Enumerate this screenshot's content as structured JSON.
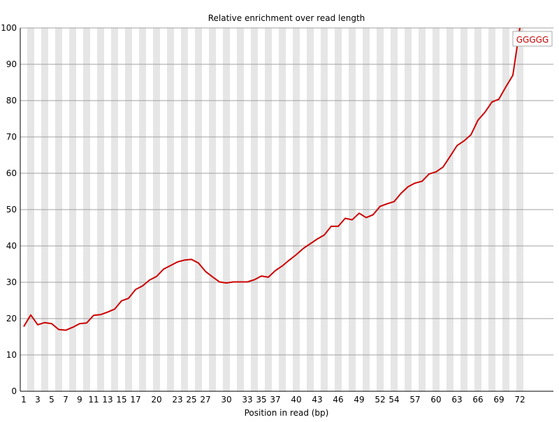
{
  "chart_data": {
    "type": "line",
    "title": "Relative enrichment over read length",
    "xlabel": "Position in read (bp)",
    "ylabel": "",
    "ylim": [
      0,
      100
    ],
    "yticks": [
      0,
      10,
      20,
      30,
      40,
      50,
      60,
      70,
      80,
      90,
      100
    ],
    "x": [
      1,
      2,
      3,
      4,
      5,
      6,
      7,
      8,
      9,
      10,
      11,
      12,
      13,
      14,
      15,
      16,
      17,
      18,
      19,
      20,
      21,
      22,
      23,
      24,
      25,
      26,
      27,
      28,
      29,
      30,
      31,
      32,
      33,
      34,
      35,
      36,
      37,
      38,
      39,
      40,
      41,
      42,
      43,
      44,
      45,
      46,
      47,
      48,
      49,
      50,
      51,
      52,
      53,
      54,
      55,
      56,
      57,
      58,
      59,
      60,
      61,
      62,
      63,
      64,
      65,
      66,
      67,
      68,
      69,
      70,
      71,
      72
    ],
    "xtick_labels": [
      "1",
      "3",
      "5",
      "7",
      "9",
      "11",
      "13",
      "15",
      "17",
      "20",
      "23",
      "25",
      "27",
      "30",
      "33",
      "35",
      "37",
      "40",
      "43",
      "46",
      "49",
      "52",
      "54",
      "57",
      "60",
      "63",
      "66",
      "69",
      "72"
    ],
    "xtick_positions": [
      1,
      3,
      5,
      7,
      9,
      11,
      13,
      15,
      17,
      20,
      23,
      25,
      27,
      30,
      33,
      35,
      37,
      40,
      43,
      46,
      49,
      52,
      54,
      57,
      60,
      63,
      66,
      69,
      72
    ],
    "grid": true,
    "background_bands": "alternating grey/white per position",
    "series": [
      {
        "name": "GGGGG",
        "color": "#cc0000",
        "values": [
          17.8,
          21.0,
          18.3,
          18.9,
          18.6,
          17.0,
          16.8,
          17.6,
          18.6,
          18.8,
          20.9,
          21.1,
          21.8,
          22.6,
          24.9,
          25.6,
          28.0,
          29.0,
          30.6,
          31.6,
          33.6,
          34.6,
          35.6,
          36.1,
          36.3,
          35.3,
          33.0,
          31.5,
          30.1,
          29.8,
          30.1,
          30.1,
          30.1,
          30.7,
          31.7,
          31.4,
          33.2,
          34.5,
          36.1,
          37.6,
          39.3,
          40.6,
          41.9,
          43.0,
          45.4,
          45.4,
          47.6,
          47.2,
          49.0,
          47.8,
          48.6,
          50.9,
          51.6,
          52.2,
          54.5,
          56.3,
          57.3,
          57.8,
          59.8,
          60.4,
          61.7,
          64.6,
          67.6,
          68.9,
          70.6,
          74.6,
          76.8,
          79.6,
          80.4,
          83.8,
          87.0,
          100.0
        ]
      }
    ]
  }
}
